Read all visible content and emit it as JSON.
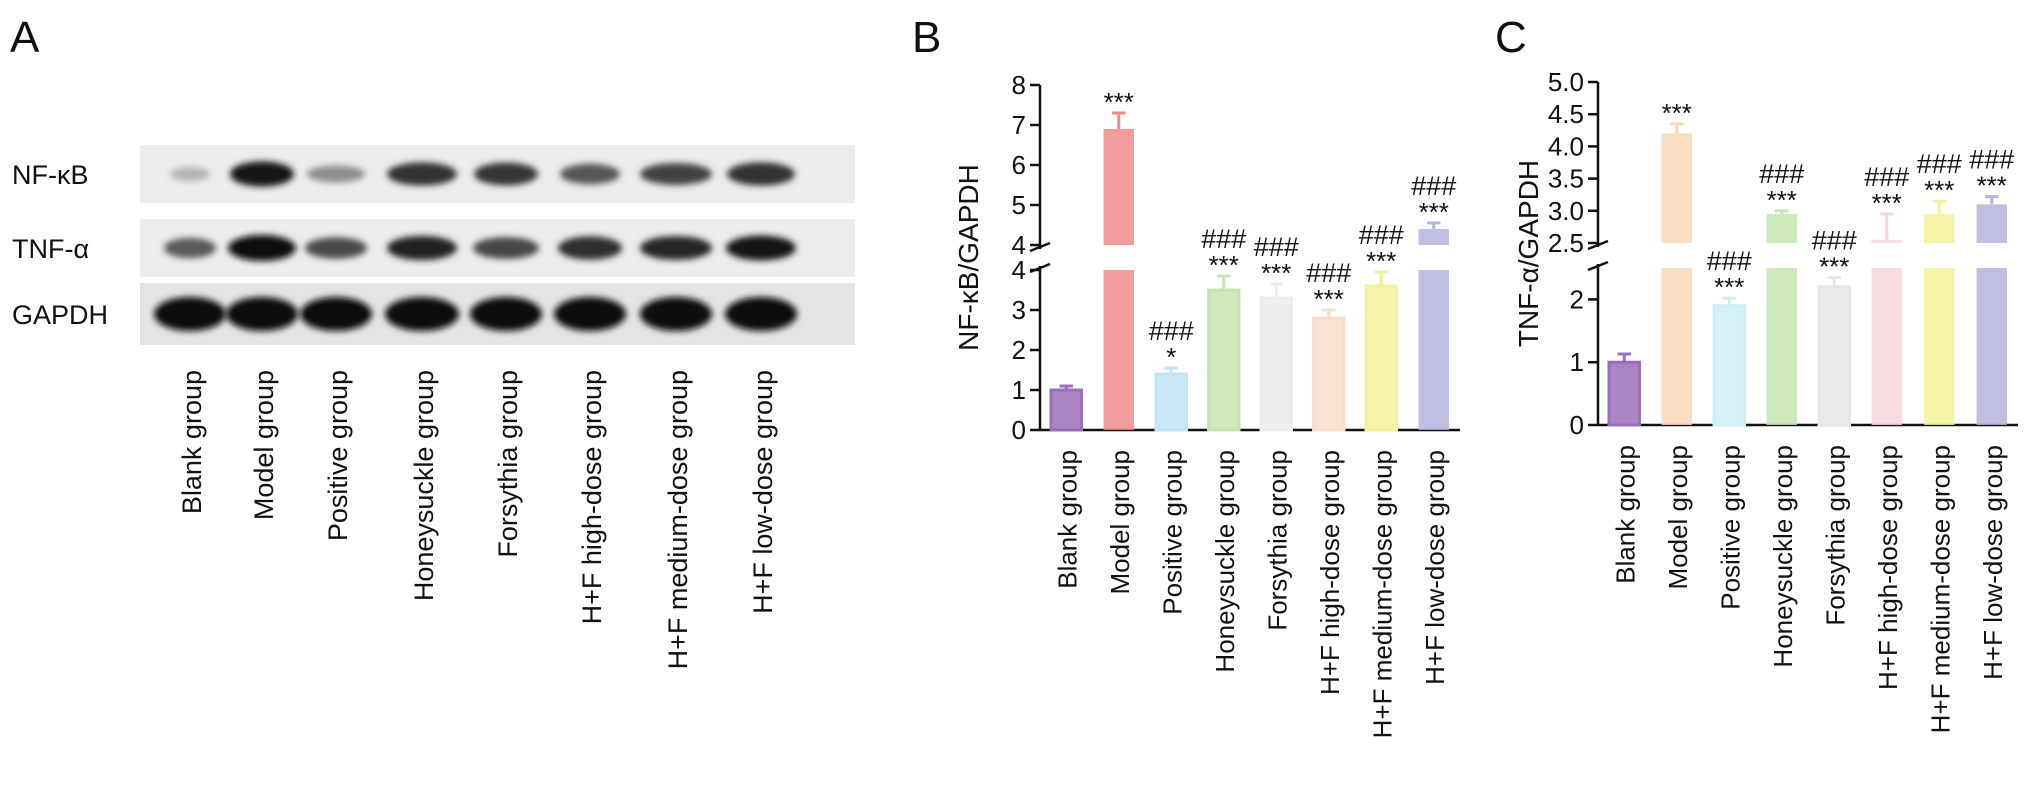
{
  "panels": {
    "A": {
      "letter": "A",
      "blot_rows": [
        {
          "label": "NF-κB",
          "intensity": [
            0.15,
            0.95,
            0.35,
            0.8,
            0.78,
            0.62,
            0.72,
            0.8
          ]
        },
        {
          "label": "TNF-α",
          "intensity": [
            0.6,
            1.0,
            0.68,
            0.88,
            0.7,
            0.82,
            0.86,
            0.93
          ]
        },
        {
          "label": "GAPDH",
          "intensity": [
            1.0,
            1.0,
            1.0,
            1.0,
            1.0,
            1.0,
            1.0,
            1.0
          ]
        }
      ],
      "lane_labels": [
        "Blank group",
        "Model group",
        "Positive group",
        "Honeysuckle group",
        "Forsythia group",
        "H+F high-dose group",
        "H+F medium-dose group",
        "H+F low-dose group"
      ]
    },
    "B": {
      "letter": "B"
    },
    "C": {
      "letter": "C"
    }
  },
  "chart_data": [
    {
      "type": "bar",
      "panel": "B",
      "ylabel": "NF-κB/GAPDH",
      "categories": [
        "Blank group",
        "Model group",
        "Positive group",
        "Honeysuckle group",
        "Forsythia group",
        "H+F high-dose group",
        "H+F medium-dose group",
        "H+F low-dose group"
      ],
      "values": [
        1.0,
        6.9,
        1.4,
        3.5,
        3.3,
        2.8,
        3.6,
        4.4
      ],
      "errors": [
        0.1,
        0.4,
        0.15,
        0.35,
        0.35,
        0.2,
        0.35,
        0.15
      ],
      "sig_star": [
        "",
        "***",
        "*",
        "***",
        "***",
        "***",
        "***",
        "***"
      ],
      "sig_hash": [
        "",
        "",
        "###",
        "###",
        "###",
        "###",
        "###",
        "###"
      ],
      "colors": [
        "#9b6fb8",
        "#ef8a8a",
        "#bfe6f2",
        "#c9e3b0",
        "#ececec",
        "#f9dccb",
        "#f3f09a",
        "#b6b3de"
      ],
      "axis_break": {
        "lower": [
          0,
          4
        ],
        "upper": [
          4,
          8
        ]
      },
      "ticks_lower": [
        "0",
        "1",
        "2",
        "3",
        "4"
      ],
      "ticks_upper": [
        "4",
        "5",
        "6",
        "7",
        "8"
      ]
    },
    {
      "type": "bar",
      "panel": "C",
      "ylabel": "TNF-α/GAPDH",
      "categories": [
        "Blank group",
        "Model group",
        "Positive group",
        "Honeysuckle group",
        "Forsythia group",
        "H+F high-dose group",
        "H+F medium-dose group",
        "H+F low-dose group"
      ],
      "values": [
        1.0,
        4.2,
        1.9,
        2.95,
        2.2,
        2.55,
        2.95,
        3.1
      ],
      "errors": [
        0.13,
        0.15,
        0.12,
        0.05,
        0.15,
        0.4,
        0.2,
        0.12
      ],
      "sig_star": [
        "",
        "***",
        "***",
        "***",
        "***",
        "***",
        "***",
        "***"
      ],
      "sig_hash": [
        "",
        "",
        "###",
        "###",
        "###",
        "###",
        "###",
        "###"
      ],
      "colors": [
        "#9b6fb8",
        "#f8d7b5",
        "#cdeef7",
        "#c6e6b0",
        "#e6e6e6",
        "#f8d5da",
        "#f3f09a",
        "#b6b3de"
      ],
      "axis_break": {
        "lower": [
          0,
          2.5
        ],
        "upper": [
          2.5,
          5.0
        ]
      },
      "ticks_lower": [
        "0",
        "1",
        "2"
      ],
      "ticks_upper": [
        "2.5",
        "3.0",
        "3.5",
        "4.0",
        "4.5",
        "5.0"
      ]
    }
  ]
}
